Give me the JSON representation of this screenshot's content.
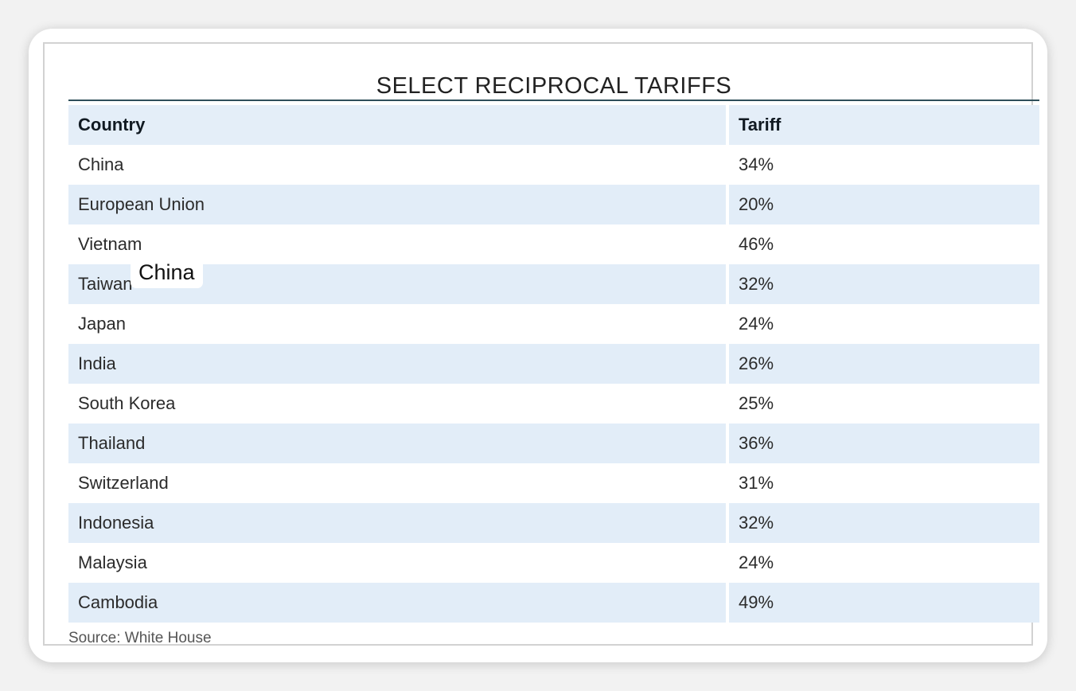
{
  "chart_data": {
    "type": "table",
    "title": "SELECT RECIPROCAL TARIFFS",
    "columns": [
      "Country",
      "Tariff"
    ],
    "rows": [
      {
        "country": "China",
        "tariff": "34%"
      },
      {
        "country": "European Union",
        "tariff": "20%"
      },
      {
        "country": "Vietnam",
        "tariff": "46%"
      },
      {
        "country": "Taiwan",
        "tariff": "32%"
      },
      {
        "country": "Japan",
        "tariff": "24%"
      },
      {
        "country": "India",
        "tariff": "26%"
      },
      {
        "country": "South Korea",
        "tariff": "25%"
      },
      {
        "country": "Thailand",
        "tariff": "36%"
      },
      {
        "country": "Switzerland",
        "tariff": "31%"
      },
      {
        "country": "Indonesia",
        "tariff": "32%"
      },
      {
        "country": "Malaysia",
        "tariff": "24%"
      },
      {
        "country": "Cambodia",
        "tariff": "49%"
      }
    ],
    "source": "Source: White House"
  },
  "overlay_label": "China",
  "colors": {
    "header_fill": "#e4eef8",
    "shaded_row_fill": "#e2edf8",
    "title_rule": "#2f4f5a"
  }
}
